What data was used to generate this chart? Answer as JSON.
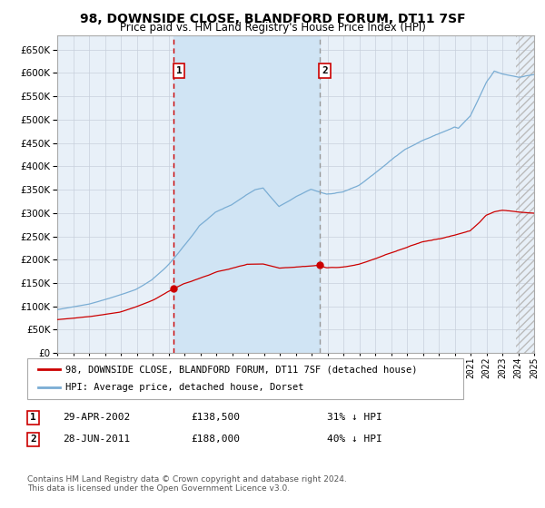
{
  "title1": "98, DOWNSIDE CLOSE, BLANDFORD FORUM, DT11 7SF",
  "title2": "Price paid vs. HM Land Registry's House Price Index (HPI)",
  "legend_red": "98, DOWNSIDE CLOSE, BLANDFORD FORUM, DT11 7SF (detached house)",
  "legend_blue": "HPI: Average price, detached house, Dorset",
  "annotation1_date": "29-APR-2002",
  "annotation1_price": "£138,500",
  "annotation1_hpi": "31% ↓ HPI",
  "annotation2_date": "28-JUN-2011",
  "annotation2_price": "£188,000",
  "annotation2_hpi": "40% ↓ HPI",
  "footnote": "Contains HM Land Registry data © Crown copyright and database right 2024.\nThis data is licensed under the Open Government Licence v3.0.",
  "ylim": [
    0,
    680000
  ],
  "yticks": [
    0,
    50000,
    100000,
    150000,
    200000,
    250000,
    300000,
    350000,
    400000,
    450000,
    500000,
    550000,
    600000,
    650000
  ],
  "year_start": 1995,
  "year_end": 2025,
  "vline1_year": 2002.32,
  "vline2_year": 2011.49,
  "sale1_year": 2002.32,
  "sale1_price": 138500,
  "sale2_year": 2011.49,
  "sale2_price": 188000,
  "plot_bg": "#e8f0f8",
  "red_line_color": "#cc0000",
  "blue_line_color": "#7aadd4",
  "span_color": "#d0e4f4",
  "hatch_color": "#cccccc",
  "grid_color": "#c8d0dc",
  "vline1_color": "#cc0000",
  "vline2_color": "#999999",
  "box_label_color": "#cc0000"
}
